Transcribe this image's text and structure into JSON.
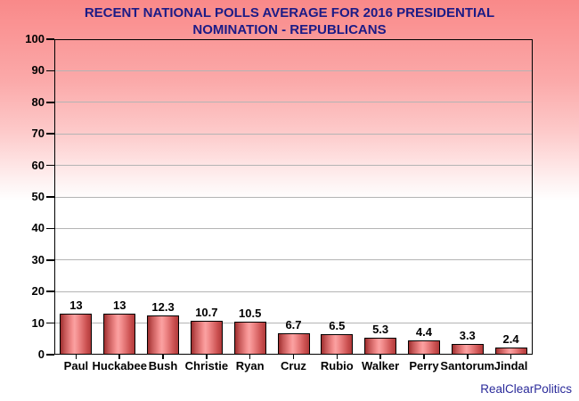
{
  "header": {
    "title_line1": "RECENT NATIONAL POLLS AVERAGE FOR 2016 PRESIDENTIAL",
    "title_line2": "NOMINATION - REPUBLICANS"
  },
  "footer": {
    "watermark": "RealClearPolitics"
  },
  "colors": {
    "background_top": "#f98989",
    "background_bottom": "#ffffff",
    "title_text": "#1b1b86",
    "watermark_text": "#2a2a9a",
    "grid_line": "#b4b4b4",
    "axis_line": "#000000",
    "bar_edge_dark": "#9e2e2e",
    "bar_center_light": "#fba2a2",
    "bar_border": "#000000",
    "label_text": "#000000"
  },
  "chart_data": {
    "type": "bar",
    "title": "RECENT NATIONAL POLLS AVERAGE FOR 2016 PRESIDENTIAL NOMINATION - REPUBLICANS",
    "categories": [
      "Paul",
      "Huckabee",
      "Bush",
      "Christie",
      "Ryan",
      "Cruz",
      "Rubio",
      "Walker",
      "Perry",
      "Santorum",
      "Jindal"
    ],
    "values": [
      13,
      13,
      12.3,
      10.7,
      10.5,
      6.7,
      6.5,
      5.3,
      4.4,
      3.3,
      2.4
    ],
    "value_labels": [
      "13",
      "13",
      "12.3",
      "10.7",
      "10.5",
      "6.7",
      "6.5",
      "5.3",
      "4.4",
      "3.3",
      "2.4"
    ],
    "xlabel": "",
    "ylabel": "",
    "ylim": [
      0,
      100
    ],
    "y_ticks": [
      0,
      10,
      20,
      30,
      40,
      50,
      60,
      70,
      80,
      90,
      100
    ],
    "grid": "horizontal",
    "legend": "none",
    "source": "RealClearPolitics"
  }
}
